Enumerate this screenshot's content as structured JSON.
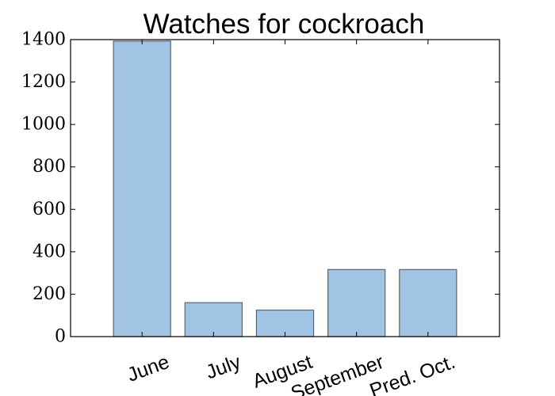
{
  "chart_data": {
    "type": "bar",
    "title": "Watches for cockroach",
    "xlabel": "",
    "ylabel": "",
    "categories": [
      "June",
      "July",
      "August",
      "September",
      "Pred. Oct."
    ],
    "values": [
      1393,
      160,
      125,
      316,
      316
    ],
    "ylim": [
      0,
      1400
    ],
    "yticks": [
      0,
      200,
      400,
      600,
      800,
      1000,
      1200,
      1400
    ],
    "ytick_labels": [
      "0",
      "200",
      "400",
      "600",
      "800",
      "1000",
      "1200",
      "1400"
    ],
    "xlim": [
      -0.5,
      5.5
    ],
    "x_label_rotation_deg": -20,
    "bar_color": "#a1c3e4",
    "grid": false,
    "legend": "none"
  }
}
